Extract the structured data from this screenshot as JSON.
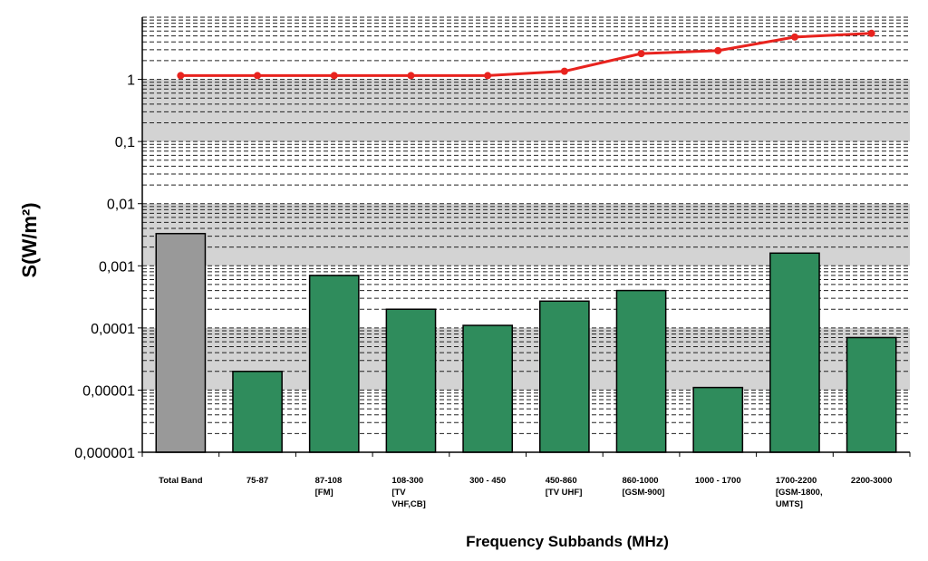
{
  "chart_data": {
    "type": "bar",
    "xlabel": "Frequency Subbands (MHz)",
    "ylabel": "S(W/m²)",
    "yscale": "log",
    "ylim": [
      1e-06,
      10
    ],
    "yticks": [
      "0,000001",
      "0,00001",
      "0,0001",
      "0,001",
      "0,01",
      "0,1",
      "1"
    ],
    "ytick_values": [
      1e-06,
      1e-05,
      0.0001,
      0.001,
      0.01,
      0.1,
      1
    ],
    "grid": "dashed horizontal at minor log steps, alternating grey and white bands per decade",
    "categories": [
      [
        "Total Band"
      ],
      [
        "75-87"
      ],
      [
        "87-108",
        "[FM]"
      ],
      [
        "108-300",
        "[TV",
        "VHF,CB]"
      ],
      [
        "300 - 450"
      ],
      [
        "450-860",
        "[TV UHF]"
      ],
      [
        "860-1000",
        "[GSM-900]"
      ],
      [
        "1000 - 1700"
      ],
      [
        "1700-2200",
        "[GSM-1800,",
        "UMTS]"
      ],
      [
        "2200-3000"
      ]
    ],
    "series": [
      {
        "kind": "bar",
        "values": [
          0.0033,
          2e-05,
          0.0007,
          0.0002,
          0.00011,
          0.00027,
          0.0004,
          1.1e-05,
          0.0016,
          7e-05
        ],
        "colors": [
          "#999999",
          "#2f8c5c",
          "#2f8c5c",
          "#2f8c5c",
          "#2f8c5c",
          "#2f8c5c",
          "#2f8c5c",
          "#2f8c5c",
          "#2f8c5c",
          "#2f8c5c"
        ]
      },
      {
        "kind": "line",
        "color": "#e8231e",
        "values": [
          1.15,
          1.15,
          1.15,
          1.15,
          1.15,
          1.35,
          2.6,
          2.9,
          4.8,
          5.5
        ]
      }
    ]
  }
}
